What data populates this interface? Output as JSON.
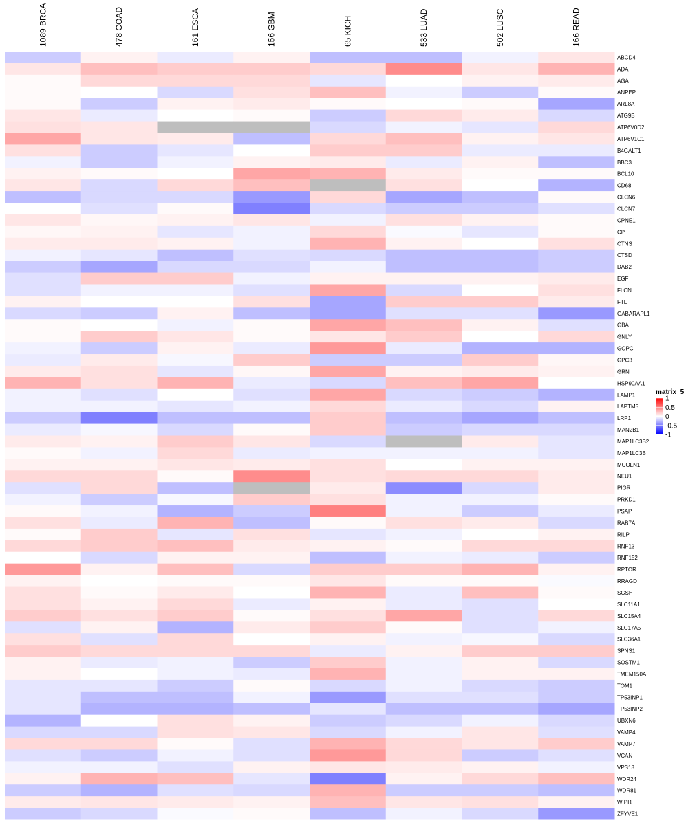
{
  "chart_data": {
    "type": "heatmap",
    "columns": [
      "1089 BRCA",
      "478 COAD",
      "161 ESCA",
      "156 GBM",
      "65 KICH",
      "533 LUAD",
      "502 LUSC",
      "166 READ"
    ],
    "rows": [
      "ABCD4",
      "ADA",
      "AGA",
      "ANPEP",
      "ARL8A",
      "ATG9B",
      "ATP6V0D2",
      "ATP6V1C1",
      "B4GALT1",
      "BBC3",
      "BCL10",
      "CD68",
      "CLCN6",
      "CLCN7",
      "CPNE1",
      "CP",
      "CTNS",
      "CTSD",
      "DAB2",
      "EGF",
      "FLCN",
      "FTL",
      "GABARAPL1",
      "GBA",
      "GNLY",
      "GOPC",
      "GPC3",
      "GRN",
      "HSP90AA1",
      "LAMP1",
      "LAPTM5",
      "LRP1",
      "MAN2B1",
      "MAP1LC3B2",
      "MAP1LC3B",
      "MCOLN1",
      "NEU1",
      "PIGR",
      "PRKD1",
      "PSAP",
      "RAB7A",
      "RILP",
      "RNF13",
      "RNF152",
      "RPTOR",
      "RRAGD",
      "SGSH",
      "SLC11A1",
      "SLC15A4",
      "SLC17A5",
      "SLC36A1",
      "SPNS1",
      "SQSTM1",
      "TMEM150A",
      "TOM1",
      "TP53INP1",
      "TP53INP2",
      "UBXN6",
      "VAMP4",
      "VAMP7",
      "VCAN",
      "VPS18",
      "WDR24",
      "WDR81",
      "WIPI1",
      "ZFYVE1"
    ],
    "values": [
      [
        -0.2,
        0.05,
        -0.08,
        0.05,
        -0.25,
        -0.25,
        -0.05,
        0.1
      ],
      [
        0.1,
        0.25,
        0.2,
        0.2,
        0.15,
        0.45,
        0.1,
        0.3
      ],
      [
        0.02,
        0.15,
        0.15,
        0.15,
        -0.1,
        0.0,
        0.05,
        0.08
      ],
      [
        0.02,
        0.0,
        -0.15,
        0.12,
        0.25,
        -0.05,
        -0.2,
        0.02
      ],
      [
        0.02,
        -0.2,
        0.05,
        0.08,
        0.02,
        0.0,
        0.02,
        -0.35
      ],
      [
        0.1,
        -0.08,
        0.0,
        0.02,
        -0.2,
        0.15,
        0.08,
        -0.15
      ],
      [
        0.12,
        0.1,
        null,
        null,
        -0.15,
        -0.05,
        -0.1,
        0.15
      ],
      [
        0.35,
        0.1,
        0.08,
        -0.25,
        0.15,
        0.25,
        0.05,
        0.1
      ],
      [
        0.12,
        -0.2,
        -0.1,
        0.0,
        0.2,
        0.2,
        -0.08,
        -0.08
      ],
      [
        -0.05,
        -0.2,
        -0.05,
        0.05,
        0.08,
        -0.08,
        0.05,
        -0.25
      ],
      [
        0.05,
        0.02,
        0.0,
        0.35,
        0.3,
        0.08,
        0.02,
        0.02
      ],
      [
        0.1,
        -0.15,
        0.15,
        0.25,
        null,
        0.12,
        0.0,
        -0.3
      ],
      [
        -0.25,
        -0.15,
        -0.15,
        -0.4,
        0.15,
        -0.35,
        -0.25,
        0.02
      ],
      [
        0.0,
        -0.12,
        0.02,
        -0.5,
        -0.15,
        -0.2,
        -0.2,
        -0.12
      ],
      [
        0.1,
        0.03,
        0.05,
        0.1,
        -0.05,
        0.12,
        0.05,
        0.02
      ],
      [
        0.03,
        0.05,
        -0.1,
        -0.05,
        0.15,
        -0.02,
        -0.1,
        0.02
      ],
      [
        0.08,
        0.08,
        0.05,
        -0.05,
        0.3,
        0.05,
        0.0,
        0.12
      ],
      [
        -0.05,
        -0.1,
        -0.25,
        -0.12,
        -0.15,
        -0.25,
        -0.25,
        -0.2
      ],
      [
        -0.2,
        -0.35,
        -0.15,
        -0.15,
        -0.05,
        -0.25,
        -0.25,
        -0.2
      ],
      [
        -0.12,
        0.2,
        0.2,
        -0.05,
        0.05,
        0.05,
        0.05,
        0.08
      ],
      [
        -0.12,
        -0.05,
        -0.05,
        -0.12,
        0.35,
        -0.15,
        0.0,
        0.12
      ],
      [
        0.05,
        0.0,
        0.0,
        0.12,
        -0.35,
        0.2,
        0.2,
        0.08
      ],
      [
        -0.15,
        -0.2,
        0.05,
        -0.25,
        -0.35,
        -0.12,
        -0.12,
        -0.4
      ],
      [
        0.02,
        0.0,
        -0.05,
        0.02,
        0.35,
        0.25,
        0.05,
        -0.12
      ],
      [
        0.02,
        0.2,
        0.1,
        0.02,
        0.1,
        0.2,
        0.0,
        0.15
      ],
      [
        -0.05,
        -0.2,
        0.05,
        -0.08,
        0.4,
        -0.08,
        -0.3,
        -0.3
      ],
      [
        -0.08,
        0.08,
        -0.03,
        0.2,
        -0.2,
        -0.2,
        0.2,
        0.03
      ],
      [
        0.08,
        0.12,
        -0.1,
        0.03,
        0.35,
        0.05,
        0.08,
        0.05
      ],
      [
        0.3,
        0.12,
        0.3,
        -0.08,
        -0.15,
        0.25,
        0.35,
        0.0
      ],
      [
        -0.05,
        -0.12,
        0.0,
        -0.12,
        0.35,
        -0.15,
        -0.2,
        -0.3
      ],
      [
        -0.05,
        -0.05,
        -0.1,
        -0.05,
        0.15,
        -0.08,
        -0.15,
        0.05
      ],
      [
        -0.2,
        -0.5,
        -0.25,
        -0.25,
        0.2,
        -0.25,
        -0.35,
        -0.25
      ],
      [
        -0.08,
        -0.03,
        -0.15,
        0.02,
        0.2,
        -0.2,
        -0.15,
        -0.15
      ],
      [
        0.08,
        0.05,
        0.2,
        0.1,
        -0.15,
        null,
        0.08,
        -0.1
      ],
      [
        0.02,
        -0.05,
        0.15,
        -0.08,
        -0.05,
        -0.05,
        -0.05,
        -0.1
      ],
      [
        0.05,
        0.05,
        0.1,
        0.08,
        0.12,
        0.0,
        0.05,
        0.05
      ],
      [
        0.15,
        0.15,
        0.02,
        0.45,
        0.12,
        0.15,
        0.15,
        0.08
      ],
      [
        -0.12,
        0.15,
        -0.25,
        null,
        0.08,
        -0.45,
        -0.15,
        0.08
      ],
      [
        -0.05,
        -0.2,
        -0.03,
        0.2,
        0.12,
        -0.05,
        -0.05,
        0.02
      ],
      [
        0.02,
        -0.05,
        -0.3,
        -0.2,
        0.5,
        -0.05,
        -0.2,
        -0.08
      ],
      [
        0.12,
        -0.08,
        0.3,
        -0.25,
        0.02,
        0.12,
        0.08,
        -0.15
      ],
      [
        0.02,
        0.2,
        -0.1,
        0.12,
        -0.1,
        -0.05,
        0.0,
        0.05
      ],
      [
        0.15,
        0.2,
        0.25,
        0.08,
        0.05,
        0.02,
        0.15,
        0.15
      ],
      [
        0.0,
        -0.15,
        0.05,
        0.05,
        -0.25,
        -0.05,
        -0.08,
        -0.2
      ],
      [
        0.4,
        0.05,
        0.25,
        -0.15,
        0.2,
        0.2,
        0.3,
        0.05
      ],
      [
        0.05,
        0.0,
        0.02,
        0.02,
        0.1,
        0.02,
        0.02,
        -0.02
      ],
      [
        0.12,
        0.02,
        0.08,
        0.0,
        0.3,
        -0.08,
        0.25,
        0.02
      ],
      [
        0.12,
        0.05,
        0.15,
        -0.08,
        0.05,
        -0.08,
        -0.12,
        0.0
      ],
      [
        0.2,
        0.12,
        0.2,
        0.02,
        0.12,
        0.35,
        -0.12,
        0.15
      ],
      [
        -0.12,
        0.05,
        -0.3,
        0.08,
        0.2,
        0.02,
        -0.12,
        -0.05
      ],
      [
        0.12,
        -0.12,
        0.15,
        0.0,
        0.05,
        -0.05,
        -0.03,
        -0.15
      ],
      [
        0.2,
        0.15,
        0.15,
        0.15,
        -0.08,
        0.05,
        0.2,
        0.2
      ],
      [
        0.05,
        -0.08,
        -0.05,
        -0.2,
        0.2,
        -0.05,
        0.05,
        -0.15
      ],
      [
        0.05,
        0.0,
        -0.05,
        -0.08,
        0.3,
        -0.05,
        0.05,
        0.05
      ],
      [
        -0.1,
        -0.1,
        -0.2,
        0.02,
        -0.15,
        -0.05,
        -0.15,
        -0.2
      ],
      [
        -0.1,
        -0.25,
        -0.25,
        -0.05,
        -0.4,
        -0.12,
        -0.12,
        -0.2
      ],
      [
        -0.1,
        -0.3,
        -0.3,
        -0.25,
        -0.1,
        -0.25,
        -0.25,
        -0.35
      ],
      [
        -0.3,
        0.0,
        0.12,
        0.05,
        -0.2,
        -0.15,
        -0.05,
        -0.15
      ],
      [
        -0.15,
        -0.15,
        0.12,
        0.1,
        -0.15,
        -0.05,
        0.1,
        -0.12
      ],
      [
        0.15,
        0.15,
        0.02,
        -0.12,
        0.3,
        0.15,
        0.1,
        0.2
      ],
      [
        -0.12,
        -0.2,
        -0.05,
        -0.12,
        0.4,
        0.15,
        -0.2,
        -0.12
      ],
      [
        -0.05,
        -0.05,
        -0.12,
        0.05,
        0.1,
        0.08,
        0.05,
        -0.05
      ],
      [
        0.05,
        0.3,
        0.25,
        -0.1,
        -0.5,
        0.05,
        0.15,
        0.25
      ],
      [
        -0.2,
        -0.3,
        -0.12,
        -0.15,
        0.3,
        -0.2,
        -0.2,
        -0.25
      ],
      [
        0.08,
        0.1,
        0.08,
        0.05,
        0.25,
        0.1,
        0.12,
        0.05
      ],
      [
        -0.2,
        -0.15,
        -0.02,
        0.02,
        -0.25,
        -0.05,
        -0.15,
        -0.4
      ]
    ],
    "missing_color": "#bebebe",
    "legend": {
      "title": "matrix_5",
      "ticks": [
        "1",
        "0.5",
        "0",
        "-0.5",
        "-1"
      ],
      "tick_values": [
        1,
        0.5,
        0,
        -0.5,
        -1
      ],
      "colors": {
        "high": "#ff0000",
        "mid": "#ffffff",
        "low": "#0000ff"
      },
      "placement": "right"
    }
  }
}
